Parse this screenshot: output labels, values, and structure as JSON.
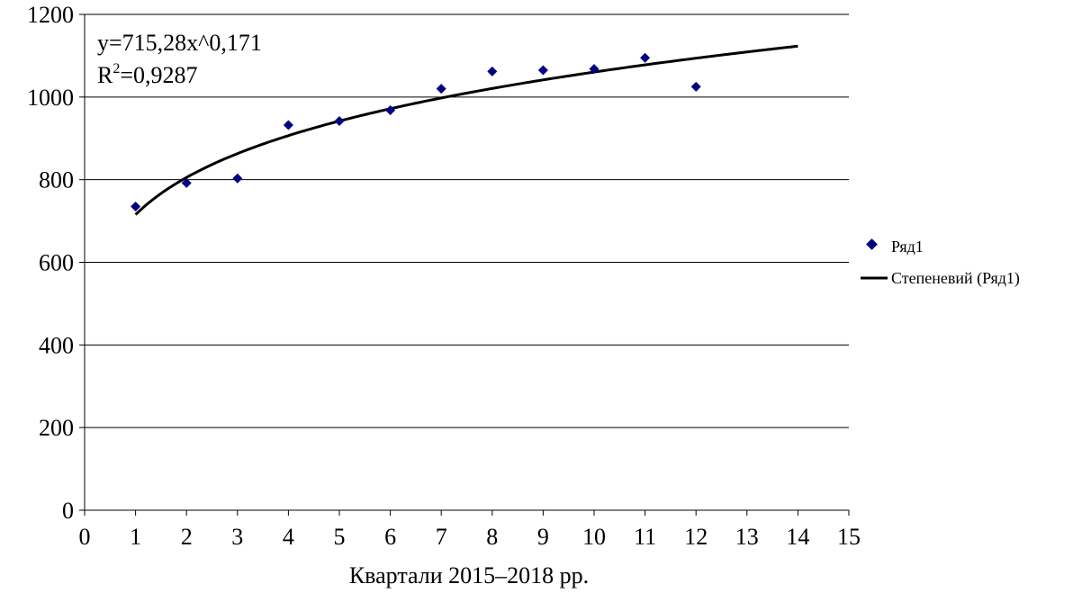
{
  "chart_data": {
    "type": "scatter",
    "xlabel": "Квартали 2015–2018 рр.",
    "ylabel": "",
    "xlim": [
      0,
      15
    ],
    "ylim": [
      0,
      1200
    ],
    "x_ticks": [
      "0",
      "1",
      "2",
      "3",
      "4",
      "5",
      "6",
      "7",
      "8",
      "9",
      "10",
      "11",
      "12",
      "13",
      "14",
      "15"
    ],
    "y_ticks": [
      "0",
      "200",
      "400",
      "600",
      "800",
      "1000",
      "1200"
    ],
    "grid": "horizontal",
    "legend_position": "right",
    "series": [
      {
        "name": "Ряд1",
        "marker": "diamond",
        "color": "#000080",
        "x": [
          1,
          2,
          3,
          4,
          5,
          6,
          7,
          8,
          9,
          10,
          11,
          12
        ],
        "y": [
          735,
          792,
          803,
          932,
          942,
          968,
          1020,
          1062,
          1065,
          1068,
          1095,
          1025
        ]
      }
    ],
    "trendline": {
      "name": "Степеневий (Ряд1)",
      "type": "power",
      "coefficient": 715.28,
      "exponent": 0.171,
      "x_range": [
        1,
        14
      ],
      "color": "#000000"
    },
    "annotation": {
      "equation": "y=715,28x^0,171",
      "r2_prefix": "R",
      "r2_sup": "2",
      "r2_value": "=0,9287"
    }
  }
}
